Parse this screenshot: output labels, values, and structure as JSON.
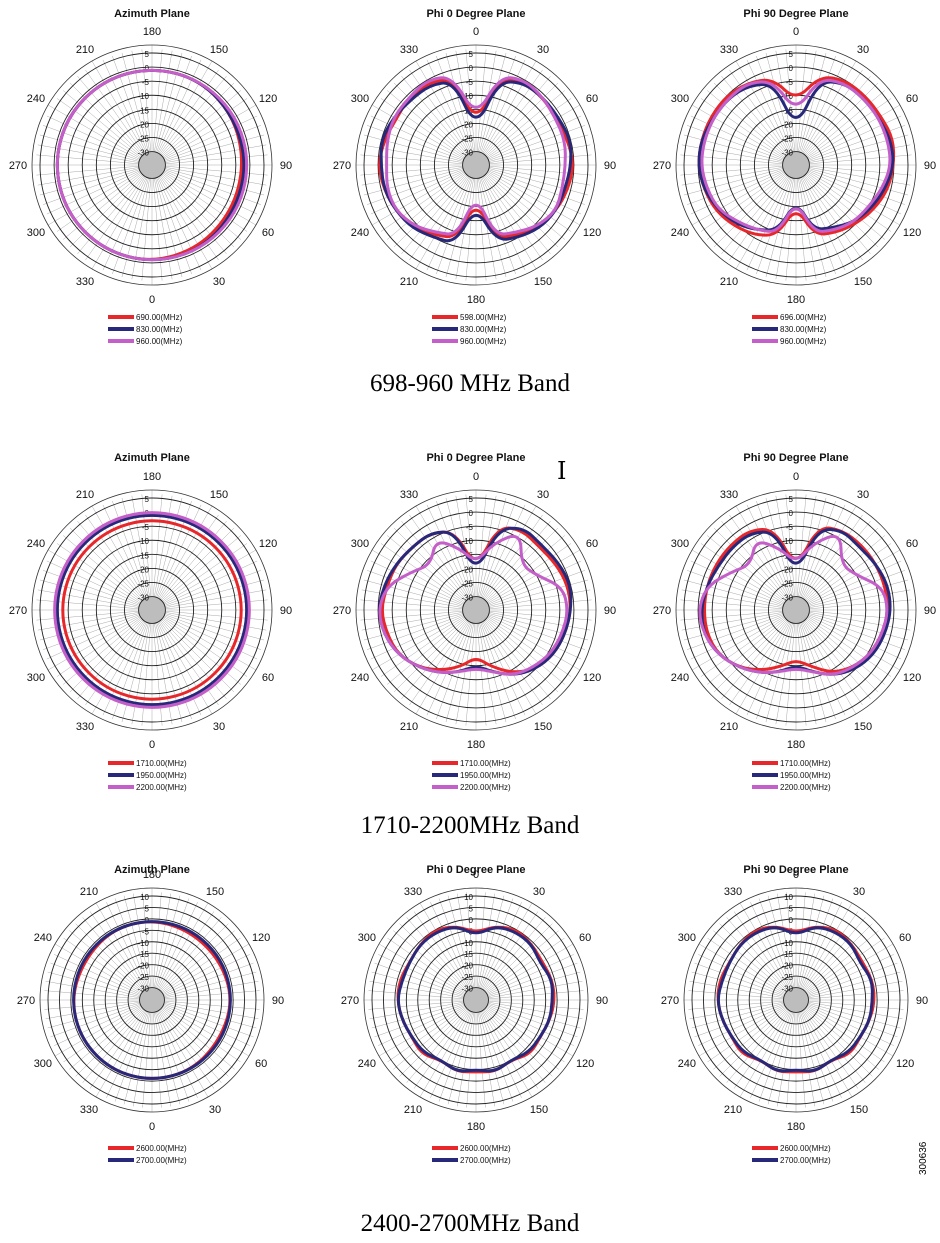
{
  "bands": [
    {
      "caption": "698-960 MHz Band",
      "charts": [
        {
          "title": "Azimuth Plane",
          "angle_labels": [
            "180",
            "150",
            "120",
            "90",
            "60",
            "30",
            "0",
            "330",
            "300",
            "270",
            "240",
            "210"
          ],
          "rlabels": [
            "5",
            "0",
            "-5",
            "-10",
            "-15",
            "-20",
            "-25",
            "-30"
          ],
          "legend": [
            "690.00(MHz)",
            "830.00(MHz)",
            "960.00(MHz)"
          ]
        },
        {
          "title": "Phi 0 Degree Plane",
          "angle_labels": [
            "0",
            "30",
            "60",
            "90",
            "120",
            "150",
            "180",
            "210",
            "240",
            "270",
            "300",
            "330"
          ],
          "rlabels": [
            "5",
            "0",
            "-5",
            "-10",
            "-15",
            "-20",
            "-25",
            "-30"
          ],
          "legend": [
            "598.00(MHz)",
            "830.00(MHz)",
            "960.00(MHz)"
          ]
        },
        {
          "title": "Phi 90 Degree Plane",
          "angle_labels": [
            "0",
            "30",
            "60",
            "90",
            "120",
            "150",
            "180",
            "210",
            "240",
            "270",
            "300",
            "330"
          ],
          "rlabels": [
            "5",
            "0",
            "-5",
            "-10",
            "-15",
            "-20",
            "-25",
            "-30"
          ],
          "legend": [
            "696.00(MHz)",
            "830.00(MHz)",
            "960.00(MHz)"
          ]
        }
      ]
    },
    {
      "caption": "1710-2200MHz Band",
      "charts": [
        {
          "title": "Azimuth Plane",
          "angle_labels": [
            "180",
            "150",
            "120",
            "90",
            "60",
            "30",
            "0",
            "330",
            "300",
            "270",
            "240",
            "210"
          ],
          "rlabels": [
            "5",
            "0",
            "-5",
            "-10",
            "-15",
            "-20",
            "-25",
            "-30"
          ],
          "legend": [
            "1710.00(MHz)",
            "1950.00(MHz)",
            "2200.00(MHz)"
          ]
        },
        {
          "title": "Phi 0 Degree Plane",
          "angle_labels": [
            "0",
            "30",
            "60",
            "90",
            "120",
            "150",
            "180",
            "210",
            "240",
            "270",
            "300",
            "330"
          ],
          "rlabels": [
            "5",
            "0",
            "-5",
            "-10",
            "-15",
            "-20",
            "-25",
            "-30"
          ],
          "legend": [
            "1710.00(MHz)",
            "1950.00(MHz)",
            "2200.00(MHz)"
          ]
        },
        {
          "title": "Phi 90 Degree Plane",
          "angle_labels": [
            "0",
            "30",
            "60",
            "90",
            "120",
            "150",
            "180",
            "210",
            "240",
            "270",
            "300",
            "330"
          ],
          "rlabels": [
            "5",
            "0",
            "-5",
            "-10",
            "-15",
            "-20",
            "-25",
            "-30"
          ],
          "legend": [
            "1710.00(MHz)",
            "1950.00(MHz)",
            "2200.00(MHz)"
          ]
        }
      ]
    },
    {
      "caption": "2400-2700MHz Band",
      "charts": [
        {
          "title": "Azimuth Plane",
          "angle_labels": [
            "180",
            "150",
            "120",
            "90",
            "60",
            "30",
            "0",
            "330",
            "300",
            "270",
            "240",
            "210"
          ],
          "rlabels": [
            "10",
            "5",
            "0",
            "-5",
            "-10",
            "-15",
            "-20",
            "-25",
            "-30"
          ],
          "legend": [
            "2600.00(MHz)",
            "2700.00(MHz)"
          ]
        },
        {
          "title": "Phi 0 Degree Plane",
          "angle_labels": [
            "0",
            "30",
            "60",
            "90",
            "120",
            "150",
            "180",
            "210",
            "240",
            "270",
            "300",
            "330"
          ],
          "rlabels": [
            "10",
            "5",
            "0",
            "-5",
            "-10",
            "-15",
            "-20",
            "-25",
            "-30"
          ],
          "legend": [
            "2600.00(MHz)",
            "2700.00(MHz)"
          ]
        },
        {
          "title": "Phi 90 Degree Plane",
          "angle_labels": [
            "0",
            "30",
            "60",
            "90",
            "120",
            "150",
            "180",
            "210",
            "240",
            "270",
            "300",
            "330"
          ],
          "rlabels": [
            "10",
            "5",
            "0",
            "-5",
            "-10",
            "-15",
            "-20",
            "-25",
            "-30"
          ],
          "legend": [
            "2600.00(MHz)",
            "2700.00(MHz)"
          ]
        }
      ]
    }
  ],
  "figure_id": "300636",
  "series_colors": [
    "#e8272b",
    "#27287a",
    "#c45ec8"
  ],
  "chart_data": [
    {
      "type": "polar",
      "title": "Azimuth Plane",
      "band": "698-960 MHz Band",
      "rlim": [
        -30,
        5
      ],
      "theta": [
        0,
        30,
        60,
        90,
        120,
        150,
        180,
        210,
        240,
        270,
        300,
        330
      ],
      "series": [
        {
          "name": "690.00(MHz)",
          "r": [
            0,
            -1,
            -2,
            -2,
            -1,
            0,
            0,
            0,
            0,
            0,
            0,
            0
          ]
        },
        {
          "name": "830.00(MHz)",
          "r": [
            0,
            0,
            -1,
            -1,
            -1,
            0,
            0,
            0,
            0,
            0,
            0,
            0
          ]
        },
        {
          "name": "960.00(MHz)",
          "r": [
            0,
            0,
            0,
            0,
            0,
            0,
            0,
            0,
            0,
            0,
            0,
            0
          ]
        }
      ]
    },
    {
      "type": "polar",
      "title": "Phi 0 Degree Plane",
      "band": "698-960 MHz Band",
      "rlim": [
        -30,
        5
      ],
      "theta": [
        0,
        15,
        30,
        45,
        60,
        75,
        90,
        105,
        120,
        135,
        150,
        165,
        180,
        195,
        210,
        225,
        240,
        255,
        270,
        285,
        300,
        315,
        330,
        345
      ],
      "series": [
        {
          "name": "598.00(MHz)",
          "r": [
            -20,
            -3,
            -1,
            -1,
            -2,
            -1,
            0,
            -1,
            -2,
            -4,
            -6,
            -8,
            -22,
            -8,
            -6,
            -4,
            -2,
            -1,
            0,
            -1,
            -2,
            -1,
            -1,
            -3
          ]
        },
        {
          "name": "830.00(MHz)",
          "r": [
            -22,
            -4,
            -1,
            -1,
            -1,
            0,
            -1,
            -2,
            -2,
            -3,
            -5,
            -7,
            -20,
            -6,
            -5,
            -3,
            -2,
            -1,
            -1,
            0,
            -1,
            -2,
            -2,
            -4
          ]
        },
        {
          "name": "960.00(MHz)",
          "r": [
            -18,
            -2,
            0,
            -1,
            -2,
            -2,
            -3,
            -3,
            -2,
            -4,
            -7,
            -9,
            -24,
            -9,
            -7,
            -4,
            -2,
            -2,
            -3,
            -2,
            -1,
            -1,
            0,
            -2
          ]
        }
      ]
    },
    {
      "type": "polar",
      "title": "Phi 90 Degree Plane",
      "band": "698-960 MHz Band",
      "rlim": [
        -30,
        5
      ],
      "theta": [
        0,
        15,
        30,
        45,
        60,
        75,
        90,
        105,
        120,
        135,
        150,
        165,
        180,
        195,
        210,
        225,
        240,
        255,
        270,
        285,
        300,
        315,
        330,
        345
      ],
      "series": [
        {
          "name": "696.00(MHz)",
          "r": [
            -12,
            -2,
            0,
            0,
            0,
            1,
            0,
            -1,
            -3,
            -5,
            -7,
            -9,
            -20,
            -9,
            -6,
            -4,
            -2,
            -1,
            0,
            0,
            0,
            0,
            -1,
            -3
          ]
        },
        {
          "name": "830.00(MHz)",
          "r": [
            -22,
            -4,
            -1,
            -1,
            -1,
            0,
            0,
            -2,
            -4,
            -6,
            -9,
            -11,
            -22,
            -11,
            -8,
            -5,
            -3,
            -1,
            0,
            0,
            -1,
            -1,
            -2,
            -5
          ]
        },
        {
          "name": "960.00(MHz)",
          "r": [
            -16,
            -3,
            -1,
            -1,
            -1,
            -1,
            -1,
            -3,
            -5,
            -6,
            -8,
            -10,
            -22,
            -10,
            -8,
            -6,
            -3,
            -2,
            -1,
            -1,
            -1,
            -1,
            -1,
            -4
          ]
        }
      ]
    },
    {
      "type": "polar",
      "title": "Azimuth Plane",
      "band": "1710-2200MHz Band",
      "rlim": [
        -30,
        5
      ],
      "theta": [
        0,
        30,
        60,
        90,
        120,
        150,
        180,
        210,
        240,
        270,
        300,
        330
      ],
      "series": [
        {
          "name": "1710.00(MHz)",
          "r": [
            -2,
            -2,
            -2,
            -2,
            -2,
            -2,
            -2,
            -2,
            -2,
            -2,
            -2,
            -2
          ]
        },
        {
          "name": "1950.00(MHz)",
          "r": [
            0,
            0,
            0,
            0,
            0,
            0,
            0,
            0,
            0,
            0,
            0,
            0
          ]
        },
        {
          "name": "2200.00(MHz)",
          "r": [
            1,
            1,
            1,
            1,
            1,
            1,
            1,
            1,
            1,
            1,
            1,
            1
          ]
        }
      ]
    },
    {
      "type": "polar",
      "title": "Phi 0 Degree Plane",
      "band": "1710-2200MHz Band",
      "rlim": [
        -30,
        5
      ],
      "theta": [
        0,
        15,
        30,
        45,
        60,
        75,
        90,
        105,
        120,
        135,
        150,
        165,
        180,
        195,
        210,
        225,
        240,
        255,
        270,
        285,
        300,
        315,
        330,
        345
      ],
      "series": [
        {
          "name": "1710.00(MHz)",
          "r": [
            -20,
            -4,
            -2,
            -3,
            -2,
            -1,
            -1,
            -2,
            -3,
            -5,
            -9,
            -14,
            -18,
            -14,
            -10,
            -6,
            -3,
            -2,
            -1,
            -2,
            -2,
            -3,
            -3,
            -6
          ]
        },
        {
          "name": "1950.00(MHz)",
          "r": [
            -22,
            -5,
            -1,
            -2,
            -1,
            0,
            -1,
            -2,
            -3,
            -5,
            -8,
            -12,
            -15,
            -12,
            -9,
            -6,
            -3,
            -1,
            0,
            -1,
            -2,
            -3,
            -3,
            -6
          ]
        },
        {
          "name": "2200.00(MHz)",
          "r": [
            -18,
            -10,
            -3,
            -12,
            -10,
            -3,
            -2,
            -3,
            -4,
            -6,
            -8,
            -12,
            -14,
            -12,
            -9,
            -6,
            -3,
            -1,
            0,
            -2,
            -8,
            -12,
            -6,
            -12
          ]
        }
      ]
    },
    {
      "type": "polar",
      "title": "Phi 90 Degree Plane",
      "band": "1710-2200MHz Band",
      "rlim": [
        -30,
        5
      ],
      "theta": [
        0,
        15,
        30,
        45,
        60,
        75,
        90,
        105,
        120,
        135,
        150,
        165,
        180,
        195,
        210,
        225,
        240,
        255,
        270,
        285,
        300,
        315,
        330,
        345
      ],
      "series": [
        {
          "name": "1710.00(MHz)",
          "r": [
            -20,
            -4,
            -2,
            -2,
            -2,
            -2,
            -2,
            -3,
            -4,
            -6,
            -9,
            -14,
            -17,
            -14,
            -10,
            -6,
            -3,
            -2,
            -2,
            -2,
            -2,
            -2,
            -2,
            -5
          ]
        },
        {
          "name": "1950.00(MHz)",
          "r": [
            -22,
            -5,
            -2,
            -3,
            -2,
            -1,
            -1,
            -2,
            -3,
            -5,
            -8,
            -12,
            -15,
            -12,
            -9,
            -6,
            -3,
            -1,
            -1,
            -2,
            -3,
            -3,
            -3,
            -6
          ]
        },
        {
          "name": "2200.00(MHz)",
          "r": [
            -18,
            -10,
            -3,
            -12,
            -10,
            -3,
            -2,
            -3,
            -4,
            -6,
            -8,
            -12,
            -14,
            -12,
            -9,
            -6,
            -3,
            -1,
            0,
            -2,
            -8,
            -12,
            -6,
            -12
          ]
        }
      ]
    },
    {
      "type": "polar",
      "title": "Azimuth Plane",
      "band": "2400-2700MHz Band",
      "rlim": [
        -30,
        10
      ],
      "theta": [
        0,
        30,
        60,
        90,
        120,
        150,
        180,
        210,
        240,
        270,
        300,
        330
      ],
      "series": [
        {
          "name": "2600.00(MHz)",
          "r": [
            0,
            0,
            -1,
            0,
            -1,
            -1,
            0,
            0,
            -1,
            0,
            0,
            0
          ]
        },
        {
          "name": "2700.00(MHz)",
          "r": [
            0,
            0,
            0,
            0,
            0,
            0,
            0,
            0,
            0,
            0,
            0,
            0
          ]
        }
      ]
    },
    {
      "type": "polar",
      "title": "Phi 0 Degree Plane",
      "band": "2400-2700MHz Band",
      "rlim": [
        -30,
        10
      ],
      "theta": [
        0,
        15,
        30,
        45,
        60,
        75,
        90,
        105,
        120,
        135,
        150,
        165,
        180,
        195,
        210,
        225,
        240,
        255,
        270,
        285,
        300,
        315,
        330,
        345
      ],
      "series": [
        {
          "name": "2600.00(MHz)",
          "r": [
            -6,
            -2,
            0,
            -1,
            -2,
            -1,
            -1,
            -2,
            -3,
            -2,
            -5,
            -3,
            -4,
            -3,
            -5,
            -2,
            -3,
            -2,
            -1,
            -1,
            -2,
            -1,
            0,
            -2
          ]
        },
        {
          "name": "2700.00(MHz)",
          "r": [
            -7,
            -2,
            -1,
            -1,
            -3,
            -1,
            -2,
            -2,
            -3,
            -3,
            -5,
            -3,
            -5,
            -3,
            -5,
            -3,
            -3,
            -2,
            -1,
            -2,
            -2,
            -1,
            -1,
            -2
          ]
        }
      ]
    },
    {
      "type": "polar",
      "title": "Phi 90 Degree Plane",
      "band": "2400-2700MHz Band",
      "rlim": [
        -30,
        10
      ],
      "theta": [
        0,
        15,
        30,
        45,
        60,
        75,
        90,
        105,
        120,
        135,
        150,
        165,
        180,
        195,
        210,
        225,
        240,
        255,
        270,
        285,
        300,
        315,
        330,
        345
      ],
      "series": [
        {
          "name": "2600.00(MHz)",
          "r": [
            -6,
            -2,
            0,
            -1,
            -2,
            -1,
            -1,
            -2,
            -3,
            -2,
            -5,
            -3,
            -4,
            -3,
            -5,
            -2,
            -3,
            -2,
            -1,
            -1,
            -2,
            -1,
            0,
            -2
          ]
        },
        {
          "name": "2700.00(MHz)",
          "r": [
            -7,
            -2,
            -1,
            -1,
            -3,
            -1,
            -2,
            -2,
            -3,
            -3,
            -5,
            -3,
            -5,
            -3,
            -5,
            -3,
            -3,
            -2,
            -1,
            -2,
            -2,
            -1,
            -1,
            -2
          ]
        }
      ]
    }
  ]
}
